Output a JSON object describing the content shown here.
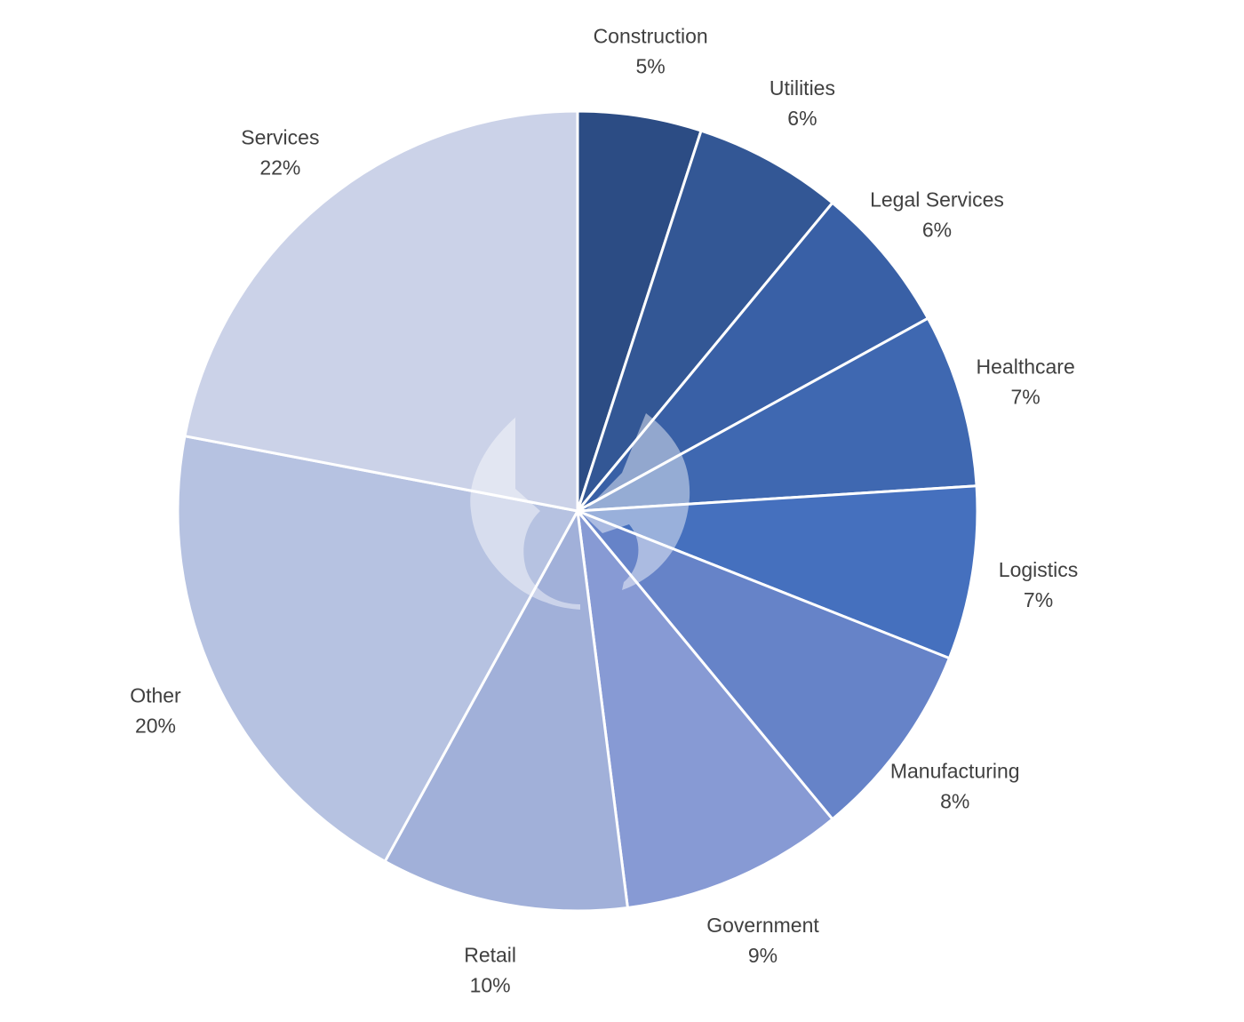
{
  "chart_data": {
    "type": "pie",
    "title": "",
    "start_angle_deg": 0,
    "direction": "clockwise",
    "legend": "none",
    "slices": [
      {
        "label": "Construction",
        "value": 5,
        "display": "5%",
        "color": "#2c4c84"
      },
      {
        "label": "Utilities",
        "value": 6,
        "display": "6%",
        "color": "#335795"
      },
      {
        "label": "Legal Services",
        "value": 6,
        "display": "6%",
        "color": "#3960a6"
      },
      {
        "label": "Healthcare",
        "value": 7,
        "display": "7%",
        "color": "#3f68b1"
      },
      {
        "label": "Logistics",
        "value": 7,
        "display": "7%",
        "color": "#4570be"
      },
      {
        "label": "Manufacturing",
        "value": 8,
        "display": "8%",
        "color": "#6683c8"
      },
      {
        "label": "Government",
        "value": 9,
        "display": "9%",
        "color": "#879ad4"
      },
      {
        "label": "Retail",
        "value": 10,
        "display": "10%",
        "color": "#a1b0d9"
      },
      {
        "label": "Other",
        "value": 20,
        "display": "20%",
        "color": "#b6c2e1"
      },
      {
        "label": "Services",
        "value": 22,
        "display": "22%",
        "color": "#cbd2e8"
      }
    ]
  }
}
